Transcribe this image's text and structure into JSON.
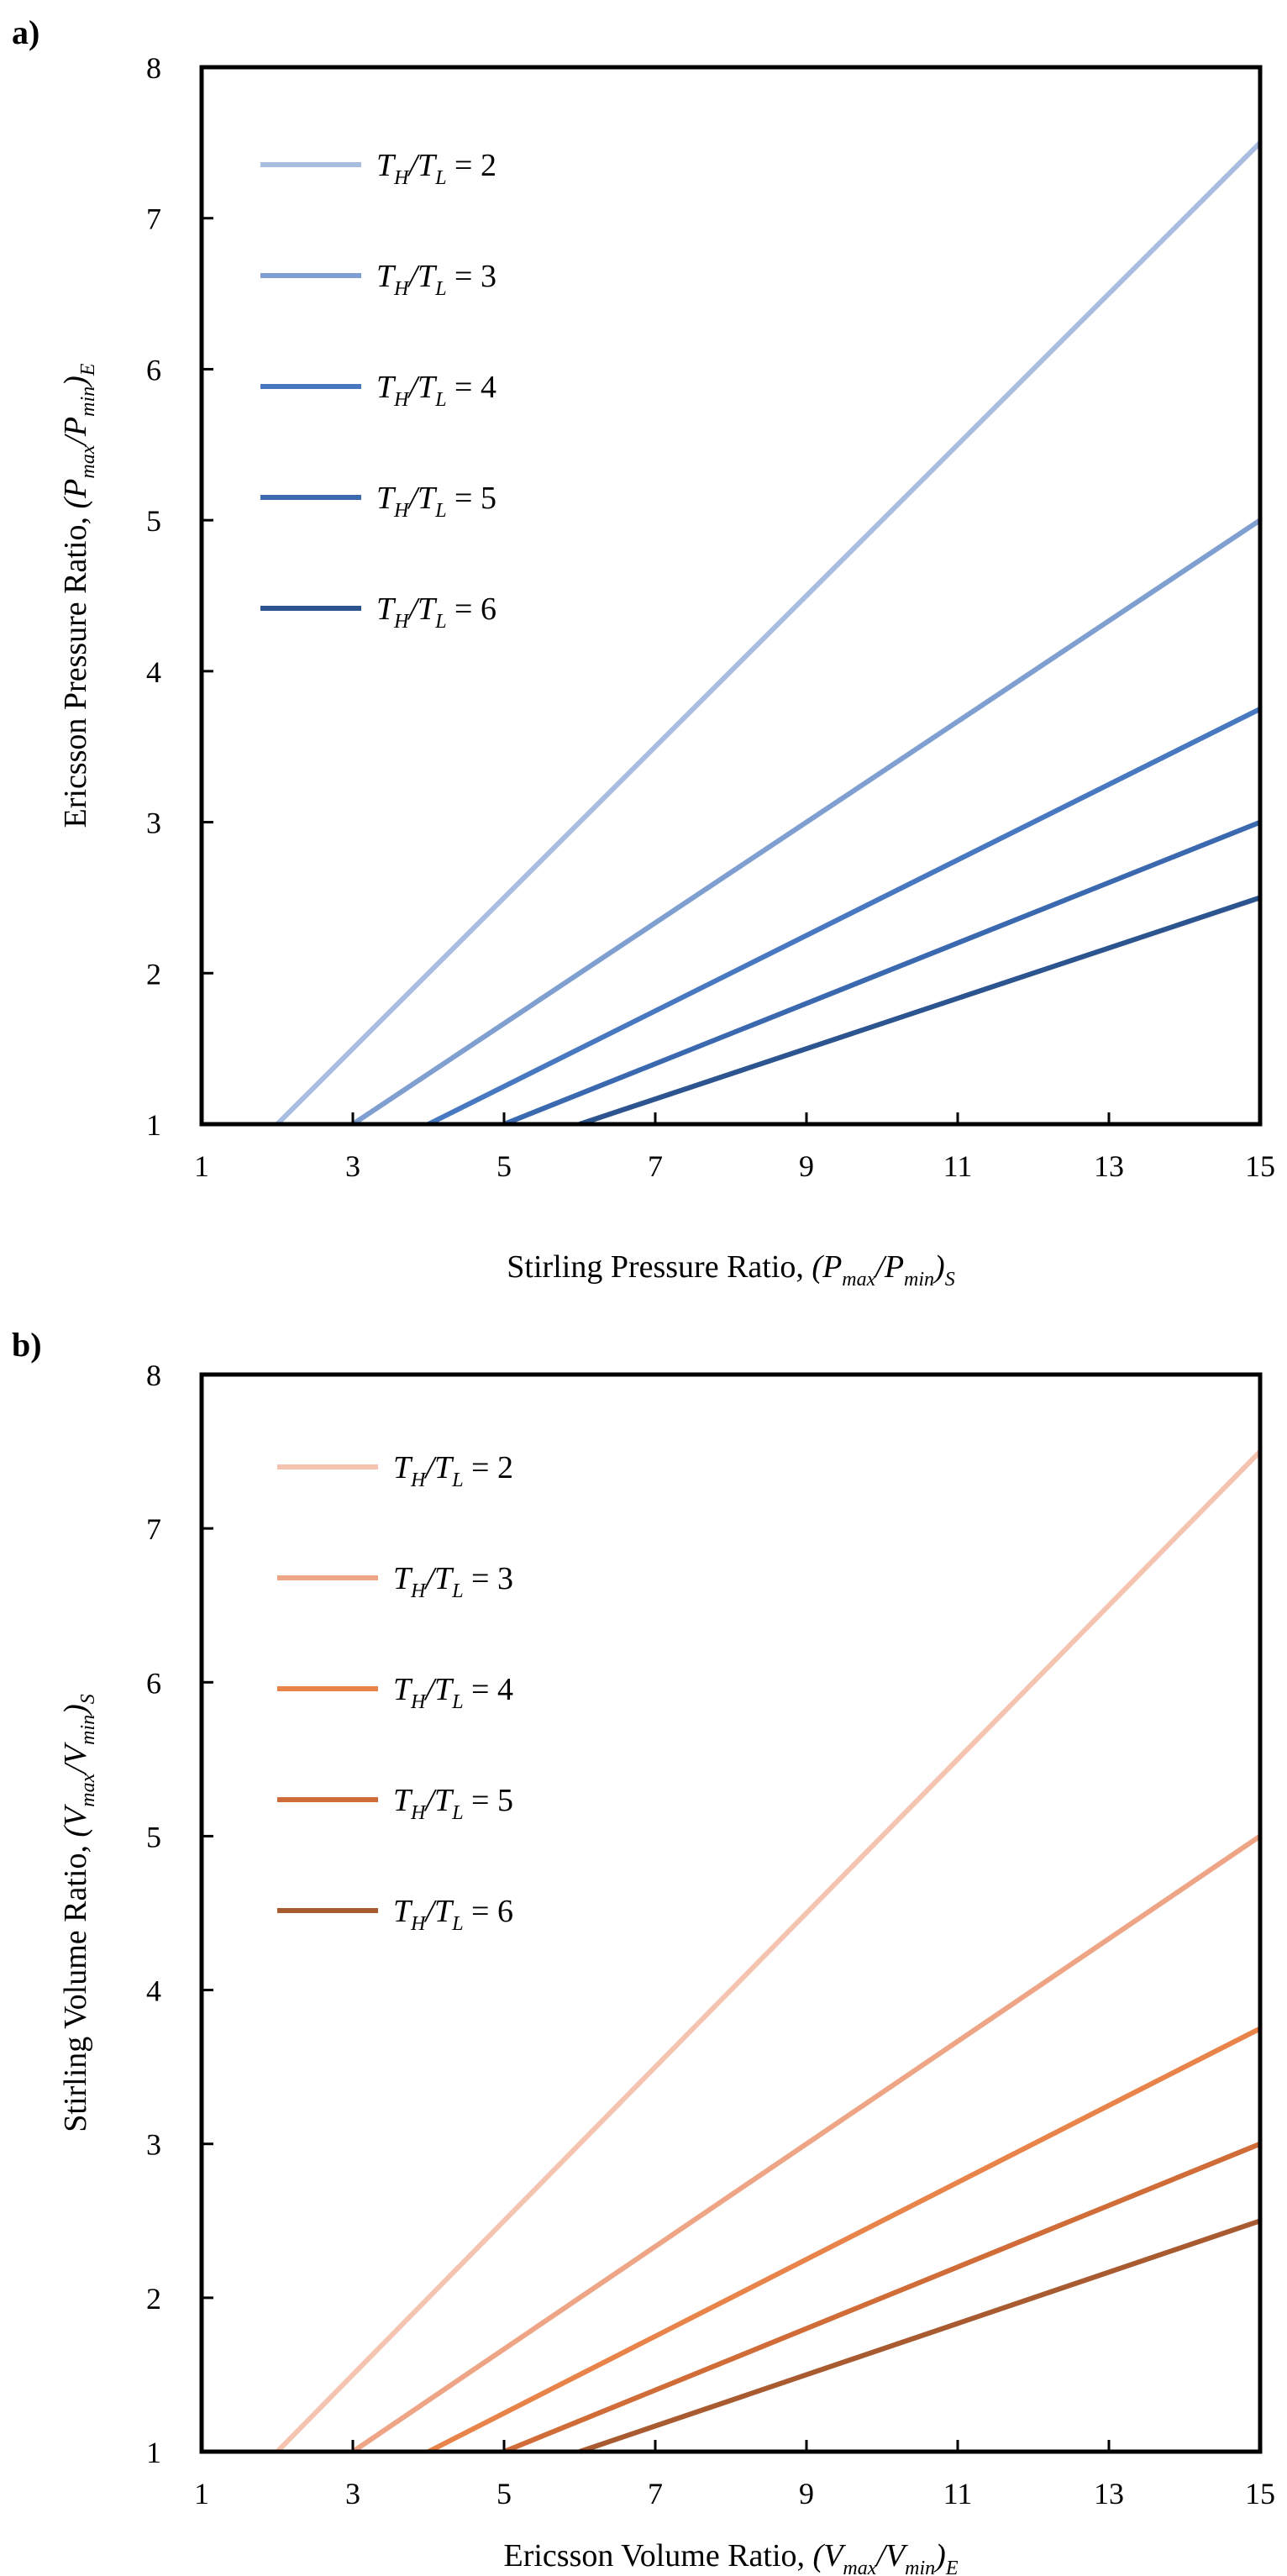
{
  "chart_data": [
    {
      "type": "line",
      "panel_label": "a)",
      "xlabel": {
        "prefix": "Stirling Pressure Ratio, ",
        "var": "P",
        "num_sub": "max",
        "den_sub": "min",
        "outer_sub": "S"
      },
      "ylabel": {
        "prefix": "Ericsson Pressure Ratio, ",
        "var": "P",
        "num_sub": "max",
        "den_sub": "min",
        "outer_sub": "E"
      },
      "xlim": [
        1,
        15
      ],
      "ylim": [
        1,
        8
      ],
      "xticks": [
        "1",
        "3",
        "5",
        "7",
        "9",
        "11",
        "13",
        "15"
      ],
      "yticks": [
        "1",
        "2",
        "3",
        "4",
        "5",
        "6",
        "7",
        "8"
      ],
      "legend_position": "top-left",
      "series": [
        {
          "name": "T_H/T_L = 2",
          "ratio": "2",
          "color": "#a9bde0",
          "x": [
            2,
            15
          ],
          "y": [
            1,
            7.5
          ]
        },
        {
          "name": "T_H/T_L = 3",
          "ratio": "3",
          "color": "#7f9fd0",
          "x": [
            3,
            15
          ],
          "y": [
            1,
            5
          ]
        },
        {
          "name": "T_H/T_L = 4",
          "ratio": "4",
          "color": "#4878c0",
          "x": [
            4,
            15
          ],
          "y": [
            1,
            3.75
          ]
        },
        {
          "name": "T_H/T_L = 5",
          "ratio": "5",
          "color": "#3a69b0",
          "x": [
            5,
            15
          ],
          "y": [
            1,
            3
          ]
        },
        {
          "name": "T_H/T_L = 6",
          "ratio": "6",
          "color": "#2c5590",
          "x": [
            6,
            15
          ],
          "y": [
            1,
            2.5
          ]
        }
      ]
    },
    {
      "type": "line",
      "panel_label": "b)",
      "xlabel": {
        "prefix": "Ericsson Volume Ratio, ",
        "var": "V",
        "num_sub": "max",
        "den_sub": "min",
        "outer_sub": "E"
      },
      "ylabel": {
        "prefix": "Stirling Volume Ratio, ",
        "var": "V",
        "num_sub": "max",
        "den_sub": "min",
        "outer_sub": "S"
      },
      "xlim": [
        1,
        15
      ],
      "ylim": [
        1,
        8
      ],
      "xticks": [
        "1",
        "3",
        "5",
        "7",
        "9",
        "11",
        "13",
        "15"
      ],
      "yticks": [
        "1",
        "2",
        "3",
        "4",
        "5",
        "6",
        "7",
        "8"
      ],
      "legend_position": "top-left",
      "series": [
        {
          "name": "T_H/T_L = 2",
          "ratio": "2",
          "color": "#f5c4b0",
          "x": [
            2,
            15
          ],
          "y": [
            1,
            7.5
          ]
        },
        {
          "name": "T_H/T_L = 3",
          "ratio": "3",
          "color": "#eea585",
          "x": [
            3,
            15
          ],
          "y": [
            1,
            5
          ]
        },
        {
          "name": "T_H/T_L = 4",
          "ratio": "4",
          "color": "#e8844a",
          "x": [
            4,
            15
          ],
          "y": [
            1,
            3.75
          ]
        },
        {
          "name": "T_H/T_L = 5",
          "ratio": "5",
          "color": "#d06c38",
          "x": [
            5,
            15
          ],
          "y": [
            1,
            3
          ]
        },
        {
          "name": "T_H/T_L = 6",
          "ratio": "6",
          "color": "#a85a30",
          "x": [
            6,
            15
          ],
          "y": [
            1,
            2.5
          ]
        }
      ]
    }
  ]
}
